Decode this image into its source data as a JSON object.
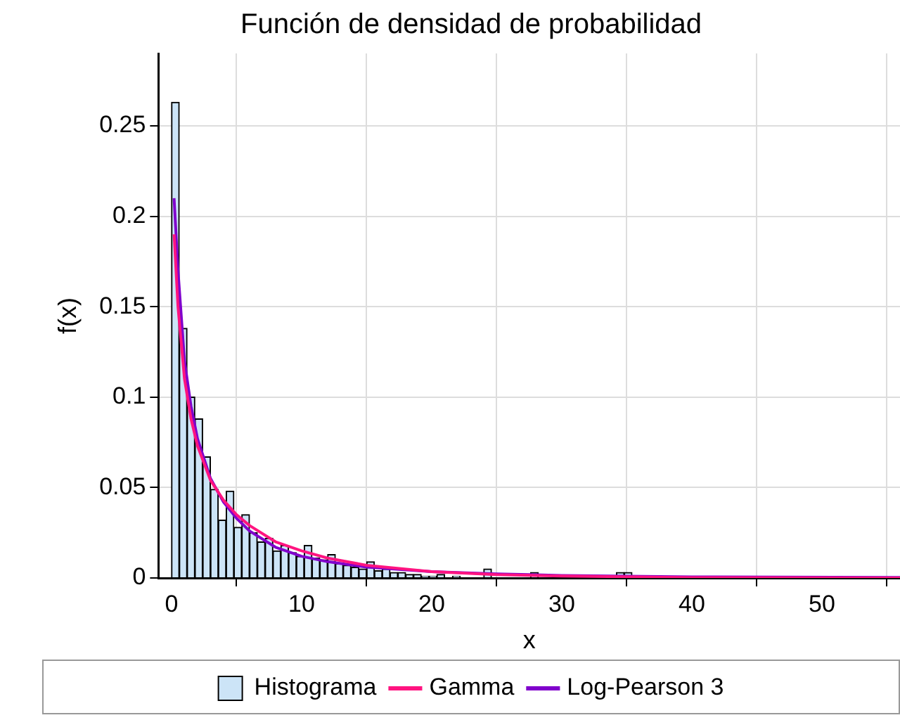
{
  "chart_data": {
    "type": "histogram",
    "title": "Función de densidad de probabilidad",
    "xlabel": "x",
    "ylabel": "f(x)",
    "xlim": [
      -1,
      56
    ],
    "xticks": [
      0,
      10,
      20,
      30,
      40,
      50
    ],
    "ylim": [
      0,
      0.29
    ],
    "yticks": [
      0,
      0.05,
      0.1,
      0.15,
      0.2,
      0.25
    ],
    "grid": true,
    "legend": "bottom",
    "marker": "none",
    "line_style": "solid",
    "series": [
      {
        "name": "Histograma",
        "type": "histogram",
        "color": "#cce4f7",
        "bins": [
          0,
          0.6,
          1.2,
          1.8,
          2.4,
          3,
          3.6,
          4.2,
          4.8,
          5.4,
          6,
          6.6,
          7.2,
          7.8,
          8.4,
          9,
          9.6,
          10.2,
          10.8,
          11.4,
          12,
          12.6,
          13.2,
          13.8,
          14.4,
          15,
          15.6,
          16.2,
          16.8,
          17.4,
          18,
          18.6,
          19.2,
          19.8,
          20.4,
          21,
          21.6,
          22.2,
          22.8,
          23.4,
          24,
          24.6,
          25.2,
          25.8,
          26.4,
          27,
          27.6,
          28.2,
          28.8,
          29.4,
          30,
          30.6,
          31.2,
          31.8,
          32.4,
          33,
          33.6,
          34.2,
          34.8,
          35.4,
          36
        ],
        "values": [
          0.263,
          0.138,
          0.1,
          0.088,
          0.067,
          0.049,
          0.032,
          0.048,
          0.028,
          0.035,
          0.025,
          0.02,
          0.022,
          0.015,
          0.018,
          0.014,
          0.012,
          0.018,
          0.011,
          0.01,
          0.013,
          0.008,
          0.007,
          0.006,
          0.005,
          0.009,
          0.004,
          0.005,
          0.003,
          0.003,
          0.002,
          0.002,
          0.001,
          0.001,
          0.002,
          0,
          0.001,
          0,
          0,
          0,
          0.005,
          0,
          0,
          0,
          0,
          0,
          0.003,
          0,
          0,
          0,
          0,
          0,
          0,
          0,
          0,
          0,
          0,
          0.003,
          0.003,
          0
        ]
      },
      {
        "name": "Gamma",
        "type": "line",
        "color": "#ff1480",
        "x": [
          0.2,
          0.5,
          1,
          1.5,
          2,
          3,
          4,
          5,
          6,
          8,
          10,
          12,
          15,
          20,
          25,
          30,
          40,
          56
        ],
        "values": [
          0.19,
          0.15,
          0.11,
          0.088,
          0.073,
          0.054,
          0.043,
          0.035,
          0.029,
          0.02,
          0.015,
          0.011,
          0.007,
          0.0035,
          0.0018,
          0.0011,
          0.0002,
          0
        ]
      },
      {
        "name": "Log-Pearson 3",
        "type": "line",
        "color": "#8000cc",
        "x": [
          0.2,
          0.5,
          1,
          1.5,
          2,
          3,
          4,
          5,
          6,
          8,
          10,
          12,
          15,
          20,
          25,
          30,
          40,
          56
        ],
        "values": [
          0.21,
          0.17,
          0.12,
          0.095,
          0.077,
          0.055,
          0.042,
          0.033,
          0.026,
          0.017,
          0.012,
          0.009,
          0.006,
          0.0035,
          0.0022,
          0.0014,
          0.0006,
          0.0003
        ]
      }
    ]
  }
}
